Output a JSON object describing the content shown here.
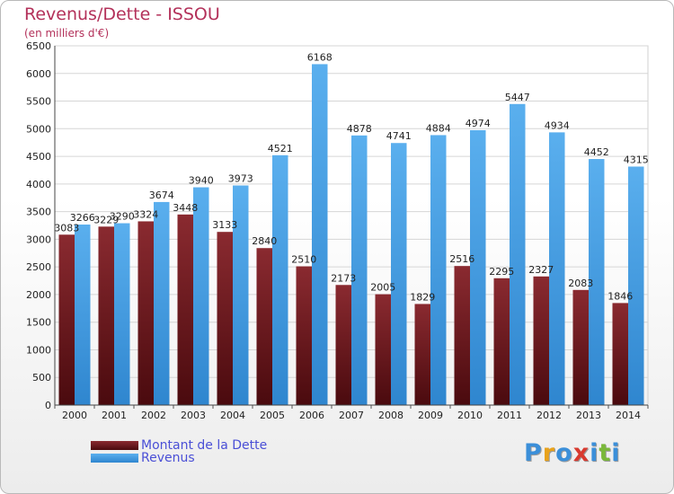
{
  "title": "Revenus/Dette - ISSOU",
  "subtitle": "(en milliers d'€)",
  "colors": {
    "dette": "#7a1f25",
    "revenus": "#4aa3e6",
    "title": "#b3315a",
    "legend_text": "#4a4fd6"
  },
  "legend": [
    {
      "label": "Montant de la Dette",
      "color": "#7a1f25"
    },
    {
      "label": "Revenus",
      "color": "#4aa3e6"
    }
  ],
  "logo": {
    "letters": [
      "P",
      "r",
      "o",
      "x",
      "i",
      "t",
      "i"
    ]
  },
  "chart_data": {
    "type": "bar",
    "categories": [
      "2000",
      "2001",
      "2002",
      "2003",
      "2004",
      "2005",
      "2006",
      "2007",
      "2008",
      "2009",
      "2010",
      "2011",
      "2012",
      "2013",
      "2014"
    ],
    "series": [
      {
        "name": "Montant de la Dette",
        "values": [
          3083,
          3229,
          3324,
          3448,
          3133,
          2840,
          2510,
          2173,
          2005,
          1829,
          2516,
          2295,
          2327,
          2083,
          1846
        ],
        "labels": [
          "3083",
          "3229",
          "3324",
          "3448",
          "3133",
          "2840",
          "2510",
          "2173",
          "2005",
          "1829",
          "2516",
          "2295",
          "2327",
          "2083",
          "1846"
        ]
      },
      {
        "name": "Revenus",
        "values": [
          3266,
          3290,
          3674,
          3940,
          3973,
          4521,
          6168,
          4878,
          4741,
          4884,
          4974,
          5447,
          4934,
          4452,
          4315
        ],
        "labels": [
          "3266",
          "3290",
          "3674",
          "3940",
          "3973",
          "4521",
          "6168",
          "4878",
          "4741",
          "4884",
          "4974",
          "5447",
          "4934",
          "4452",
          "4315"
        ]
      }
    ],
    "yticks": [
      0,
      500,
      1000,
      1500,
      2000,
      2500,
      3000,
      3500,
      4000,
      4500,
      5000,
      5500,
      6000,
      6500
    ],
    "ylim": [
      0,
      6500
    ],
    "grid": true,
    "legend_position": "bottom-left"
  }
}
